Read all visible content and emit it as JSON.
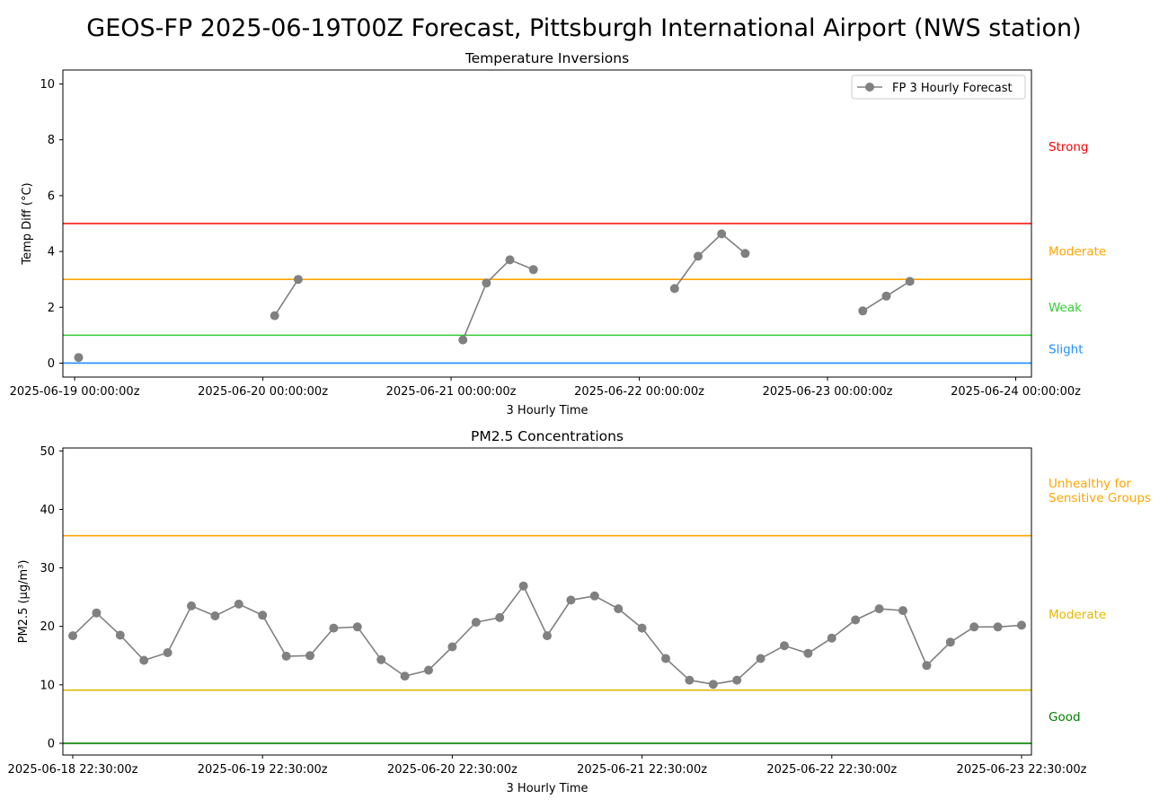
{
  "figure_title": "GEOS-FP 2025-06-19T00Z Forecast, Pittsburgh International Airport (NWS station)",
  "chart_data": [
    {
      "type": "line",
      "title": "Temperature Inversions",
      "xlabel": "3 Hourly Time",
      "ylabel": "Temp Diff (°C)",
      "ylim": [
        -0.5,
        10.5
      ],
      "yticks": [
        0,
        2,
        4,
        6,
        8,
        10
      ],
      "xlim": [
        "2025-06-18 22:30:00z",
        "2025-06-24 02:00:00z"
      ],
      "xtick_labels": [
        "2025-06-19 00:00:00z",
        "2025-06-20 00:00:00z",
        "2025-06-21 00:00:00z",
        "2025-06-22 00:00:00z",
        "2025-06-23 00:00:00z",
        "2025-06-24 00:00:00z"
      ],
      "grid": false,
      "legend": {
        "location": "upper-right",
        "entries": [
          "FP 3 Hourly Forecast"
        ]
      },
      "thresholds": [
        {
          "value": 0,
          "label": "Slight",
          "color": "#1f8fff"
        },
        {
          "value": 1,
          "label": "Weak",
          "color": "#33cc33"
        },
        {
          "value": 3,
          "label": "Moderate",
          "color": "#ffa500"
        },
        {
          "value": 5,
          "label": "Strong",
          "color": "#ff0000"
        }
      ],
      "side_labels": [
        {
          "text": "Strong",
          "y": 7.75,
          "color": "#ff0000"
        },
        {
          "text": "Moderate",
          "y": 4.0,
          "color": "#ffa500"
        },
        {
          "text": "Weak",
          "y": 2.0,
          "color": "#33cc33"
        },
        {
          "text": "Slight",
          "y": 0.5,
          "color": "#1f8fff"
        }
      ],
      "series": [
        {
          "name": "FP 3 Hourly Forecast",
          "color": "#808080",
          "segments": [
            [
              [
                "2025-06-19 00:30:00z",
                0.2
              ]
            ],
            [
              [
                "2025-06-20 01:30:00z",
                1.7
              ],
              [
                "2025-06-20 04:30:00z",
                3.0
              ]
            ],
            [
              [
                "2025-06-21 01:30:00z",
                0.83
              ],
              [
                "2025-06-21 04:30:00z",
                2.87
              ],
              [
                "2025-06-21 07:30:00z",
                3.7
              ],
              [
                "2025-06-21 10:30:00z",
                3.35
              ]
            ],
            [
              [
                "2025-06-22 04:30:00z",
                2.67
              ],
              [
                "2025-06-22 07:30:00z",
                3.83
              ],
              [
                "2025-06-22 10:30:00z",
                4.63
              ],
              [
                "2025-06-22 13:30:00z",
                3.93
              ]
            ],
            [
              [
                "2025-06-23 04:30:00z",
                1.87
              ],
              [
                "2025-06-23 07:30:00z",
                2.4
              ],
              [
                "2025-06-23 10:30:00z",
                2.93
              ]
            ]
          ]
        }
      ]
    },
    {
      "type": "line",
      "title": "PM2.5 Concentrations",
      "xlabel": "3 Hourly Time",
      "ylabel": "PM2.5 (µg/m³)",
      "ylim": [
        -2,
        50.5
      ],
      "yticks": [
        0,
        10,
        20,
        30,
        40,
        50
      ],
      "xlim": [
        "2025-06-18 21:15:00z",
        "2025-06-23 23:45:00z"
      ],
      "xtick_labels": [
        "2025-06-18 22:30:00z",
        "2025-06-19 22:30:00z",
        "2025-06-20 22:30:00z",
        "2025-06-21 22:30:00z",
        "2025-06-22 22:30:00z",
        "2025-06-23 22:30:00z"
      ],
      "grid": false,
      "thresholds": [
        {
          "value": 0,
          "label": "Good",
          "color": "#008000"
        },
        {
          "value": 9.1,
          "label": "Moderate",
          "color": "#e6b800"
        },
        {
          "value": 35.5,
          "label": "Unhealthy for Sensitive Groups",
          "color": "#ffa500"
        }
      ],
      "side_labels": [
        {
          "lines": [
            "Unhealthy for",
            "Sensitive Groups"
          ],
          "y": 43.2,
          "color": "#ffa500"
        },
        {
          "lines": [
            "Moderate"
          ],
          "y": 22.0,
          "color": "#e6b800"
        },
        {
          "lines": [
            "Good"
          ],
          "y": 4.5,
          "color": "#008000"
        }
      ],
      "series": [
        {
          "name": "FP 3 Hourly Forecast",
          "color": "#808080",
          "x_start": "2025-06-18 22:30:00z",
          "x_step_hours": 3,
          "values": [
            18.4,
            22.3,
            18.5,
            14.2,
            15.5,
            23.5,
            21.8,
            23.8,
            21.9,
            14.9,
            15.0,
            19.7,
            19.9,
            14.3,
            11.5,
            12.5,
            16.5,
            20.7,
            21.5,
            26.9,
            18.4,
            24.5,
            25.2,
            23.0,
            19.7,
            14.5,
            10.8,
            10.1,
            10.8,
            14.5,
            16.7,
            15.4,
            18.0,
            21.1,
            23.0,
            22.7,
            13.3,
            17.3,
            19.9,
            19.9,
            20.2
          ]
        }
      ]
    }
  ]
}
